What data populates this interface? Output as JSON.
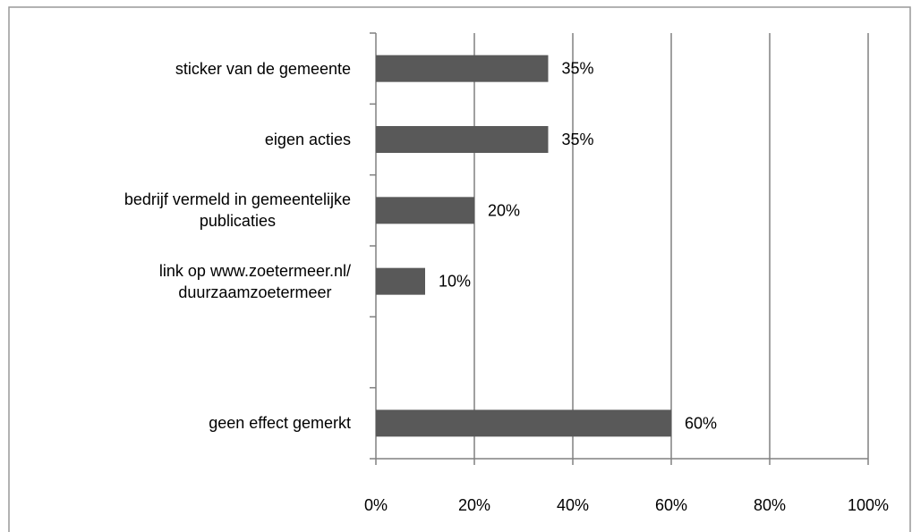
{
  "chart_data": {
    "type": "bar",
    "orientation": "horizontal",
    "categories": [
      "sticker van de gemeente",
      "eigen acties",
      "bedrijf vermeld in gemeentelijke\npublicaties",
      "link op www.zoetermeer.nl/\nduurzaamzoetermeer",
      null,
      "geen effect gemerkt"
    ],
    "values": [
      35,
      35,
      20,
      10,
      null,
      60
    ],
    "value_labels": [
      "35%",
      "35%",
      "20%",
      "10%",
      null,
      "60%"
    ],
    "color": "#595959",
    "xlim": [
      0,
      100
    ],
    "xticks": [
      {
        "value": 0,
        "label": "0%"
      },
      {
        "value": 20,
        "label": "20%"
      },
      {
        "value": 40,
        "label": "40%"
      },
      {
        "value": 60,
        "label": "60%"
      },
      {
        "value": 80,
        "label": "80%"
      },
      {
        "value": 100,
        "label": "100%"
      }
    ],
    "grid": true
  }
}
